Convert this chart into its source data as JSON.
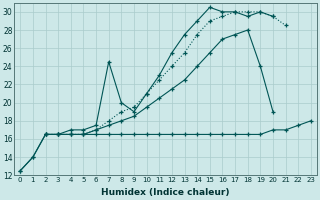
{
  "xlabel": "Humidex (Indice chaleur)",
  "background_color": "#cde8e8",
  "grid_color": "#aacccc",
  "line_color": "#005555",
  "xlim": [
    -0.5,
    23.5
  ],
  "ylim": [
    12,
    31
  ],
  "xticks": [
    0,
    1,
    2,
    3,
    4,
    5,
    6,
    7,
    8,
    9,
    10,
    11,
    12,
    13,
    14,
    15,
    16,
    17,
    18,
    19,
    20,
    21,
    22,
    23
  ],
  "yticks": [
    12,
    14,
    16,
    18,
    20,
    22,
    24,
    26,
    28,
    30
  ],
  "line1_x": [
    0,
    1,
    2,
    3,
    4,
    5,
    6,
    7,
    8,
    9,
    10,
    11,
    12,
    13,
    14,
    15,
    16,
    17,
    18,
    19,
    20,
    21,
    22,
    23
  ],
  "line1_y": [
    12.5,
    14.0,
    16.5,
    16.5,
    16.5,
    16.5,
    16.5,
    16.5,
    16.5,
    16.5,
    16.5,
    16.5,
    16.5,
    16.5,
    16.5,
    16.5,
    16.5,
    16.5,
    16.5,
    16.5,
    17.0,
    17.0,
    17.5,
    18.0
  ],
  "line2_x": [
    0,
    1,
    2,
    3,
    4,
    5,
    6,
    7,
    8,
    9,
    10,
    11,
    12,
    13,
    14,
    15,
    16,
    17,
    18,
    19,
    20
  ],
  "line2_y": [
    12.5,
    14.0,
    16.5,
    16.5,
    16.5,
    16.5,
    17.0,
    17.5,
    18.0,
    18.5,
    19.5,
    20.5,
    21.5,
    22.5,
    24.0,
    25.5,
    27.0,
    27.5,
    28.0,
    24.0,
    19.0
  ],
  "line3_x": [
    2,
    3,
    4,
    5,
    6,
    7,
    8,
    9,
    10,
    11,
    12,
    13,
    14,
    15,
    16,
    17,
    18,
    19,
    20,
    21,
    22,
    23
  ],
  "line3_y": [
    16.5,
    16.5,
    16.5,
    16.5,
    17.0,
    18.0,
    19.0,
    19.5,
    21.0,
    22.5,
    24.0,
    25.5,
    27.5,
    29.0,
    29.5,
    30.0,
    30.0,
    30.0,
    29.5,
    28.5,
    null,
    null
  ],
  "line4_x": [
    2,
    3,
    4,
    5,
    6,
    7,
    8,
    9,
    10,
    11,
    12,
    13,
    14,
    15,
    16,
    17,
    18,
    19,
    20,
    21,
    22,
    23
  ],
  "line4_y": [
    16.5,
    16.5,
    17.0,
    17.0,
    17.5,
    24.5,
    20.0,
    19.0,
    21.0,
    23.0,
    25.5,
    27.5,
    29.0,
    30.5,
    30.0,
    30.0,
    29.5,
    30.0,
    29.5,
    null,
    null,
    null
  ]
}
